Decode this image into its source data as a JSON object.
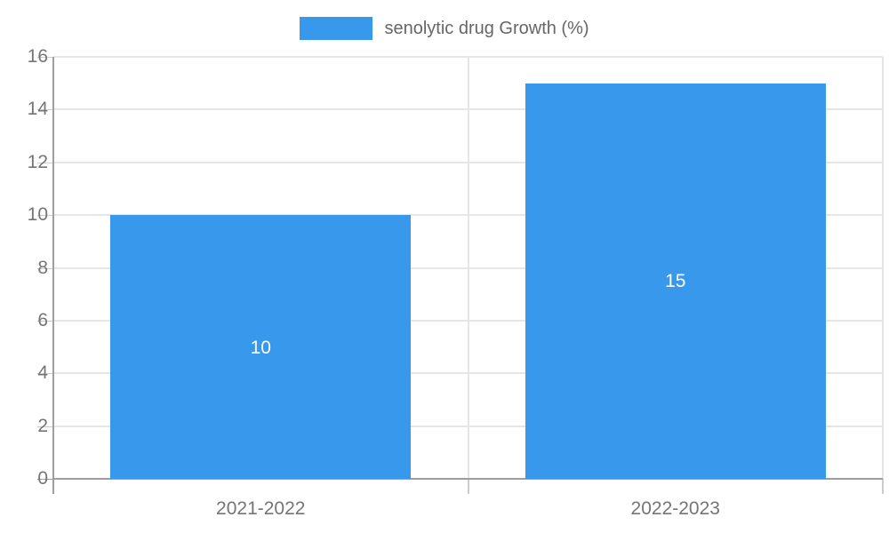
{
  "chart_data": {
    "type": "bar",
    "title": "senolytic drug Growth (%)",
    "legend": {
      "label": "senolytic drug Growth (%)",
      "position": "top"
    },
    "categories": [
      "2021-2022",
      "2022-2023"
    ],
    "series": [
      {
        "name": "senolytic drug Growth (%)",
        "values": [
          10,
          15
        ]
      }
    ],
    "bar_labels": [
      "10",
      "15"
    ],
    "xlabel": "",
    "ylabel": "",
    "ylim": [
      0,
      16
    ],
    "yticks": [
      0,
      2,
      4,
      6,
      8,
      10,
      12,
      14,
      16
    ],
    "grid": true,
    "colors": {
      "bar": "#3899ec",
      "grid": "#e6e6e6",
      "axis": "#9e9e9e",
      "tick": "#cccccc",
      "axis_label": "#757575",
      "legend_text": "#666666",
      "bar_label": "#ffffff",
      "background": "#ffffff"
    }
  }
}
